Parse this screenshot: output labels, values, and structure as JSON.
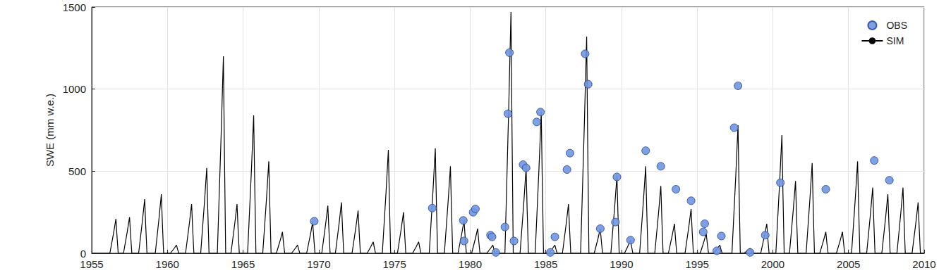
{
  "chart_data": {
    "type": "line",
    "y_label": "SWE (mm w.e.)",
    "xlim": [
      1955,
      2010
    ],
    "xticks": [
      1955,
      1960,
      1965,
      1970,
      1975,
      1980,
      1985,
      1990,
      1995,
      2000,
      2005,
      2010
    ],
    "ylim": [
      0,
      1500
    ],
    "yticks": [
      0,
      500,
      1000,
      1500
    ],
    "grid": true,
    "legend": "upper right",
    "series": [
      {
        "name": "OBS",
        "type": "scatter",
        "marker": "circle",
        "color": "#7096e0",
        "x": [
          1969.7,
          1977.5,
          1979.55,
          1979.6,
          1980.2,
          1980.35,
          1981.35,
          1981.45,
          1981.7,
          1982.3,
          1982.5,
          1982.6,
          1982.9,
          1983.5,
          1983.7,
          1984.4,
          1984.65,
          1985.3,
          1985.6,
          1986.4,
          1986.6,
          1987.6,
          1987.8,
          1988.6,
          1989.6,
          1989.7,
          1990.6,
          1991.6,
          1992.6,
          1993.6,
          1994.6,
          1995.4,
          1995.5,
          1996.3,
          1996.6,
          1997.45,
          1997.7,
          1998.5,
          1999.5,
          2000.5,
          2003.5,
          2006.7,
          2007.7
        ],
        "values": [
          195,
          275,
          200,
          75,
          250,
          270,
          110,
          100,
          5,
          160,
          850,
          1222,
          75,
          540,
          520,
          800,
          860,
          5,
          100,
          510,
          610,
          1215,
          1030,
          150,
          190,
          465,
          80,
          625,
          530,
          390,
          320,
          130,
          180,
          15,
          105,
          765,
          1020,
          5,
          110,
          430,
          390,
          565,
          445
        ]
      },
      {
        "name": "SIM",
        "type": "line",
        "line_style": "solid",
        "color": "#000000",
        "x": [
          1955,
          1956.2,
          1956.45,
          1956.6,
          1956.67,
          1956.75,
          1957.1,
          1957.35,
          1957.5,
          1957.57,
          1957.65,
          1958.1,
          1958.35,
          1958.5,
          1958.57,
          1958.65,
          1959.2,
          1959.45,
          1959.6,
          1959.67,
          1959.75,
          1960.2,
          1960.45,
          1960.6,
          1960.67,
          1960.75,
          1961.2,
          1961.45,
          1961.6,
          1961.67,
          1961.75,
          1962.2,
          1962.45,
          1962.6,
          1962.67,
          1962.75,
          1963.3,
          1963.55,
          1963.7,
          1963.77,
          1963.85,
          1964.2,
          1964.45,
          1964.6,
          1964.67,
          1964.75,
          1965.3,
          1965.55,
          1965.7,
          1965.77,
          1965.85,
          1966.3,
          1966.55,
          1966.7,
          1966.77,
          1966.85,
          1967.2,
          1967.45,
          1967.6,
          1967.67,
          1967.75,
          1968.2,
          1968.45,
          1968.6,
          1968.67,
          1968.75,
          1969.2,
          1969.45,
          1969.6,
          1969.67,
          1969.75,
          1970.2,
          1970.45,
          1970.6,
          1970.67,
          1970.75,
          1971.1,
          1971.35,
          1971.5,
          1971.57,
          1971.65,
          1972.2,
          1972.45,
          1972.6,
          1972.67,
          1972.75,
          1973.2,
          1973.45,
          1973.6,
          1973.67,
          1973.75,
          1974.2,
          1974.45,
          1974.6,
          1974.67,
          1974.75,
          1975.2,
          1975.45,
          1975.6,
          1975.67,
          1975.75,
          1976.2,
          1976.45,
          1976.6,
          1976.67,
          1976.75,
          1977.3,
          1977.55,
          1977.7,
          1977.77,
          1977.85,
          1978.3,
          1978.55,
          1978.7,
          1978.77,
          1978.85,
          1979.2,
          1979.45,
          1979.6,
          1979.67,
          1979.75,
          1980.1,
          1980.35,
          1980.5,
          1980.57,
          1980.65,
          1981.1,
          1981.35,
          1981.5,
          1981.57,
          1981.65,
          1982.3,
          1982.55,
          1982.7,
          1982.77,
          1982.85,
          1983.3,
          1983.55,
          1983.7,
          1983.77,
          1983.85,
          1984.3,
          1984.55,
          1984.7,
          1984.77,
          1984.85,
          1985.2,
          1985.45,
          1985.6,
          1985.67,
          1985.75,
          1986.1,
          1986.35,
          1986.5,
          1986.57,
          1986.65,
          1987.3,
          1987.55,
          1987.7,
          1987.77,
          1987.85,
          1988.2,
          1988.45,
          1988.6,
          1988.67,
          1988.75,
          1989.3,
          1989.55,
          1989.7,
          1989.77,
          1989.85,
          1990.2,
          1990.45,
          1990.6,
          1990.67,
          1990.75,
          1991.2,
          1991.45,
          1991.6,
          1991.67,
          1991.75,
          1992.2,
          1992.45,
          1992.6,
          1992.67,
          1992.75,
          1993.1,
          1993.35,
          1993.5,
          1993.57,
          1993.65,
          1994.2,
          1994.45,
          1994.6,
          1994.67,
          1994.75,
          1995.2,
          1995.45,
          1995.6,
          1995.67,
          1995.75,
          1996.1,
          1996.35,
          1996.5,
          1996.57,
          1996.65,
          1997.3,
          1997.55,
          1997.7,
          1997.77,
          1997.85,
          1998.1,
          1998.35,
          1998.5,
          1998.57,
          1998.65,
          1999.2,
          1999.45,
          1999.6,
          1999.67,
          1999.75,
          2000.2,
          2000.45,
          2000.6,
          2000.67,
          2000.75,
          2001.1,
          2001.35,
          2001.5,
          2001.57,
          2001.65,
          2002.2,
          2002.45,
          2002.6,
          2002.67,
          2002.75,
          2003.1,
          2003.35,
          2003.5,
          2003.57,
          2003.65,
          2004.2,
          2004.45,
          2004.6,
          2004.67,
          2004.75,
          2005.2,
          2005.45,
          2005.6,
          2005.67,
          2005.75,
          2006.2,
          2006.45,
          2006.6,
          2006.67,
          2006.75,
          2007.2,
          2007.45,
          2007.6,
          2007.67,
          2007.75,
          2008.2,
          2008.45,
          2008.6,
          2008.67,
          2008.75,
          2009.2,
          2009.45,
          2009.6,
          2009.67,
          2009.75,
          2010
        ],
        "values": [
          0,
          0,
          126,
          210,
          105,
          0,
          0,
          132,
          220,
          110,
          0,
          0,
          198,
          330,
          165,
          0,
          0,
          216,
          360,
          180,
          0,
          0,
          30,
          50,
          25,
          0,
          0,
          180,
          300,
          150,
          0,
          0,
          312,
          520,
          260,
          0,
          0,
          720,
          1200,
          600,
          0,
          0,
          180,
          300,
          150,
          0,
          0,
          504,
          840,
          420,
          0,
          0,
          336,
          560,
          280,
          0,
          0,
          78,
          130,
          65,
          0,
          0,
          30,
          50,
          25,
          0,
          0,
          114,
          190,
          95,
          0,
          0,
          174,
          290,
          145,
          0,
          0,
          186,
          310,
          155,
          0,
          0,
          156,
          260,
          130,
          0,
          0,
          42,
          70,
          35,
          0,
          0,
          378,
          630,
          315,
          0,
          0,
          150,
          250,
          125,
          0,
          0,
          42,
          70,
          35,
          0,
          0,
          384,
          640,
          320,
          0,
          0,
          318,
          530,
          265,
          0,
          0,
          120,
          200,
          100,
          0,
          0,
          90,
          150,
          75,
          0,
          0,
          30,
          50,
          25,
          0,
          0,
          882,
          1470,
          735,
          0,
          0,
          312,
          520,
          260,
          0,
          0,
          516,
          860,
          430,
          0,
          0,
          30,
          50,
          25,
          0,
          0,
          180,
          300,
          150,
          0,
          0,
          792,
          1320,
          660,
          0,
          0,
          90,
          150,
          75,
          0,
          0,
          282,
          470,
          235,
          0,
          0,
          48,
          80,
          40,
          0,
          0,
          318,
          530,
          265,
          0,
          0,
          246,
          410,
          205,
          0,
          0,
          108,
          180,
          90,
          0,
          0,
          162,
          270,
          135,
          0,
          0,
          72,
          120,
          60,
          0,
          0,
          30,
          50,
          25,
          0,
          0,
          468,
          780,
          390,
          0,
          0,
          18,
          30,
          15,
          0,
          0,
          108,
          180,
          90,
          0,
          0,
          432,
          720,
          360,
          0,
          0,
          264,
          440,
          220,
          0,
          0,
          330,
          550,
          275,
          0,
          0,
          78,
          130,
          65,
          0,
          0,
          78,
          130,
          65,
          0,
          0,
          336,
          560,
          280,
          0,
          0,
          240,
          400,
          200,
          0,
          0,
          216,
          360,
          180,
          0,
          0,
          240,
          400,
          200,
          0,
          0,
          186,
          310,
          155,
          0,
          0
        ]
      }
    ]
  }
}
